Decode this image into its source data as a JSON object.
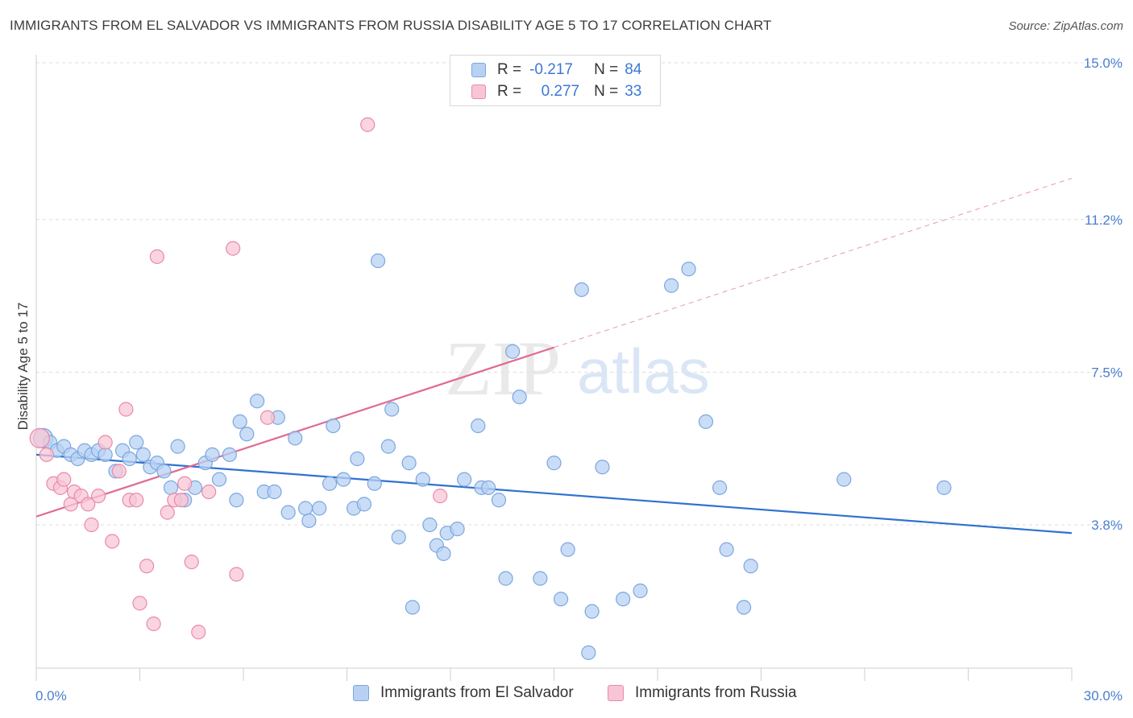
{
  "title": "IMMIGRANTS FROM EL SALVADOR VS IMMIGRANTS FROM RUSSIA DISABILITY AGE 5 TO 17 CORRELATION CHART",
  "source": "Source: ZipAtlas.com",
  "watermark": {
    "zip": "ZIP",
    "atlas": "atlas"
  },
  "legend": {
    "rows": [
      {
        "r_label": "R =",
        "r_value": "-0.217",
        "n_label": "N =",
        "n_value": "84"
      },
      {
        "r_label": "R =",
        "r_value": "0.277",
        "n_label": "N =",
        "n_value": "33"
      }
    ]
  },
  "colors": {
    "blue_fill": "#b8d1f3",
    "blue_stroke": "#7aa6e0",
    "blue_line": "#2f72d0",
    "pink_fill": "#f8c5d6",
    "pink_stroke": "#e88aa8",
    "pink_line": "#e06a93",
    "grid": "#dcdcdc",
    "tick_text": "#4a7fd0"
  },
  "chart_data": {
    "type": "scatter",
    "title": "IMMIGRANTS FROM EL SALVADOR VS IMMIGRANTS FROM RUSSIA DISABILITY AGE 5 TO 17 CORRELATION CHART",
    "xlabel": "",
    "ylabel": "Disability Age 5 to 17",
    "xlim": [
      0,
      30
    ],
    "ylim": [
      0,
      15.5
    ],
    "x_ticks": [
      "0.0%",
      "30.0%"
    ],
    "y_ticks": [
      {
        "value": 3.8,
        "label": "3.8%"
      },
      {
        "value": 7.5,
        "label": "7.5%"
      },
      {
        "value": 11.2,
        "label": "11.2%"
      },
      {
        "value": 15.0,
        "label": "15.0%"
      }
    ],
    "legend_position": "top-center",
    "series": [
      {
        "name": "Immigrants from El Salvador",
        "color": "blue",
        "r": -0.217,
        "n": 84,
        "trend": {
          "x0": 0.0,
          "y0": 5.5,
          "x1": 30.0,
          "y1": 3.6,
          "solid_until": 30.0
        },
        "points": [
          [
            0.2,
            5.9
          ],
          [
            0.4,
            5.8
          ],
          [
            0.6,
            5.6
          ],
          [
            0.8,
            5.7
          ],
          [
            1.0,
            5.5
          ],
          [
            1.2,
            5.4
          ],
          [
            1.4,
            5.6
          ],
          [
            1.6,
            5.5
          ],
          [
            1.8,
            5.6
          ],
          [
            2.0,
            5.5
          ],
          [
            2.3,
            5.1
          ],
          [
            2.5,
            5.6
          ],
          [
            2.7,
            5.4
          ],
          [
            2.9,
            5.8
          ],
          [
            3.1,
            5.5
          ],
          [
            3.3,
            5.2
          ],
          [
            3.5,
            5.3
          ],
          [
            3.7,
            5.1
          ],
          [
            3.9,
            4.7
          ],
          [
            4.1,
            5.7
          ],
          [
            4.3,
            4.4
          ],
          [
            4.6,
            4.7
          ],
          [
            4.9,
            5.3
          ],
          [
            5.1,
            5.5
          ],
          [
            5.3,
            4.9
          ],
          [
            5.6,
            5.5
          ],
          [
            5.8,
            4.4
          ],
          [
            5.9,
            6.3
          ],
          [
            6.1,
            6.0
          ],
          [
            6.4,
            6.8
          ],
          [
            6.6,
            4.6
          ],
          [
            6.9,
            4.6
          ],
          [
            7.0,
            6.4
          ],
          [
            7.3,
            4.1
          ],
          [
            7.5,
            5.9
          ],
          [
            7.8,
            4.2
          ],
          [
            7.9,
            3.9
          ],
          [
            8.2,
            4.2
          ],
          [
            8.5,
            4.8
          ],
          [
            8.6,
            6.2
          ],
          [
            8.9,
            4.9
          ],
          [
            9.2,
            4.2
          ],
          [
            9.3,
            5.4
          ],
          [
            9.5,
            4.3
          ],
          [
            9.8,
            4.8
          ],
          [
            9.9,
            10.2
          ],
          [
            10.2,
            5.7
          ],
          [
            10.3,
            6.6
          ],
          [
            10.5,
            3.5
          ],
          [
            10.8,
            5.3
          ],
          [
            10.9,
            1.8
          ],
          [
            11.2,
            4.9
          ],
          [
            11.4,
            3.8
          ],
          [
            11.6,
            3.3
          ],
          [
            11.8,
            3.1
          ],
          [
            11.9,
            3.6
          ],
          [
            12.2,
            3.7
          ],
          [
            12.4,
            4.9
          ],
          [
            12.8,
            6.2
          ],
          [
            12.9,
            4.7
          ],
          [
            13.1,
            4.7
          ],
          [
            13.4,
            4.4
          ],
          [
            13.6,
            2.5
          ],
          [
            13.8,
            8.0
          ],
          [
            14.0,
            6.9
          ],
          [
            14.6,
            2.5
          ],
          [
            15.0,
            5.3
          ],
          [
            15.2,
            2.0
          ],
          [
            15.4,
            3.2
          ],
          [
            15.8,
            9.5
          ],
          [
            16.1,
            1.7
          ],
          [
            16.4,
            5.2
          ],
          [
            17.0,
            2.0
          ],
          [
            17.5,
            2.2
          ],
          [
            18.4,
            9.6
          ],
          [
            18.9,
            10.0
          ],
          [
            19.4,
            6.3
          ],
          [
            19.8,
            4.7
          ],
          [
            20.0,
            3.2
          ],
          [
            20.7,
            2.8
          ],
          [
            20.5,
            1.8
          ],
          [
            16.0,
            0.7
          ],
          [
            23.4,
            4.9
          ],
          [
            26.3,
            4.7
          ]
        ]
      },
      {
        "name": "Immigrants from Russia",
        "color": "pink",
        "r": 0.277,
        "n": 33,
        "trend": {
          "x0": 0.0,
          "y0": 4.0,
          "x1": 30.0,
          "y1": 12.2,
          "solid_until": 15.0
        },
        "points": [
          [
            0.1,
            5.9
          ],
          [
            0.3,
            5.5
          ],
          [
            0.5,
            4.8
          ],
          [
            0.7,
            4.7
          ],
          [
            0.8,
            4.9
          ],
          [
            1.0,
            4.3
          ],
          [
            1.1,
            4.6
          ],
          [
            1.3,
            4.5
          ],
          [
            1.5,
            4.3
          ],
          [
            1.6,
            3.8
          ],
          [
            1.8,
            4.5
          ],
          [
            2.0,
            5.8
          ],
          [
            2.2,
            3.4
          ],
          [
            2.4,
            5.1
          ],
          [
            2.6,
            6.6
          ],
          [
            2.7,
            4.4
          ],
          [
            2.9,
            4.4
          ],
          [
            3.0,
            1.9
          ],
          [
            3.2,
            2.8
          ],
          [
            3.4,
            1.4
          ],
          [
            3.5,
            10.3
          ],
          [
            3.8,
            4.1
          ],
          [
            4.0,
            4.4
          ],
          [
            4.2,
            4.4
          ],
          [
            4.3,
            4.8
          ],
          [
            4.5,
            2.9
          ],
          [
            4.7,
            1.2
          ],
          [
            5.0,
            4.6
          ],
          [
            5.7,
            10.5
          ],
          [
            5.8,
            2.6
          ],
          [
            6.7,
            6.4
          ],
          [
            9.6,
            13.5
          ],
          [
            11.7,
            4.5
          ]
        ]
      }
    ]
  },
  "bottom_legend": {
    "series1": "Immigrants from El Salvador",
    "series2": "Immigrants from Russia"
  }
}
